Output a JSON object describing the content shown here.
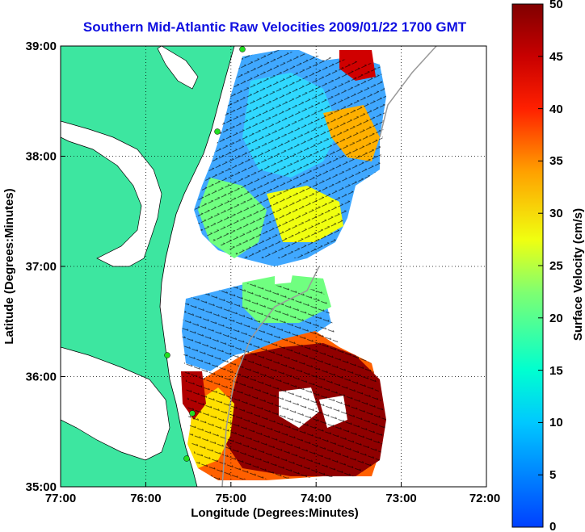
{
  "title": "Southern Mid-Atlantic Raw Velocities 2009/01/22 1700 GMT",
  "xaxis": {
    "label": "Longitude (Degrees:Minutes)",
    "ticks": [
      "77:00",
      "76:00",
      "75:00",
      "74:00",
      "73:00",
      "72:00"
    ]
  },
  "yaxis": {
    "label": "Latitude (Degrees:Minutes)",
    "ticks": [
      "39:00",
      "38:00",
      "37:00",
      "36:00",
      "35:00"
    ]
  },
  "colorbar": {
    "label": "Surface Velocity (cm/s)",
    "ticks": [
      "50",
      "45",
      "40",
      "35",
      "30",
      "25",
      "20",
      "15",
      "10",
      "5",
      "0"
    ],
    "min": 0,
    "max": 50
  },
  "colors": {
    "land": "#3de6a0",
    "title": "#1010e0",
    "station": "#22dd22"
  }
}
